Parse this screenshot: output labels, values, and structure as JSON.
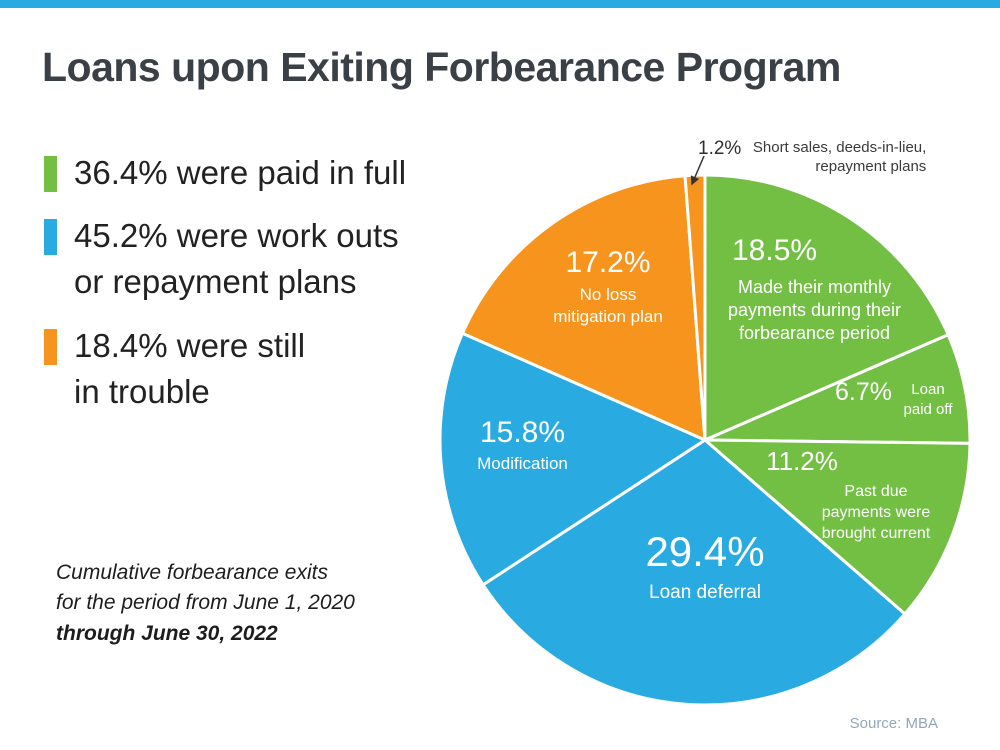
{
  "title": "Loans upon Exiting Forbearance Program",
  "colors": {
    "green": "#72bf44",
    "blue": "#29abe2",
    "orange": "#f7941d",
    "top_strip": "#29abe2",
    "title_text": "#3b4046",
    "slice_label_text": "#ffffff"
  },
  "legend": {
    "items": [
      {
        "color": "#72bf44",
        "text": "36.4% were paid in full"
      },
      {
        "color": "#29abe2",
        "text": "45.2% were work outs\nor repayment plans"
      },
      {
        "color": "#f7941d",
        "text": "18.4% were still\nin trouble"
      }
    ]
  },
  "footnote": {
    "line1": "Cumulative forbearance exits",
    "line2": "for the period from June 1, 2020",
    "line3": "through June 30, 2022"
  },
  "source": "Source: MBA",
  "chart_data": {
    "type": "pie",
    "title": "Loans upon Exiting Forbearance Program",
    "start_angle_deg": -90,
    "direction": "clockwise",
    "legend_position": "left",
    "slices": [
      {
        "label": "Made their monthly payments during their forbearance period",
        "value": 18.5,
        "pct_label": "18.5%",
        "color": "#72bf44"
      },
      {
        "label": "Loan paid off",
        "value": 6.7,
        "pct_label": "6.7%",
        "color": "#72bf44"
      },
      {
        "label": "Past due payments were brought current",
        "value": 11.2,
        "pct_label": "11.2%",
        "color": "#72bf44"
      },
      {
        "label": "Loan deferral",
        "value": 29.4,
        "pct_label": "29.4%",
        "color": "#29abe2"
      },
      {
        "label": "Modification",
        "value": 15.8,
        "pct_label": "15.8%",
        "color": "#29abe2"
      },
      {
        "label": "No loss mitigation plan",
        "value": 17.2,
        "pct_label": "17.2%",
        "color": "#f7941d"
      },
      {
        "label": "Short sales, deeds-in-lieu, repayment plans",
        "value": 1.2,
        "pct_label": "1.2%",
        "color": "#f7941d"
      }
    ],
    "annotation": {
      "pct": "1.2%",
      "text": "Short sales, deeds-in-lieu,\nrepayment plans"
    }
  }
}
